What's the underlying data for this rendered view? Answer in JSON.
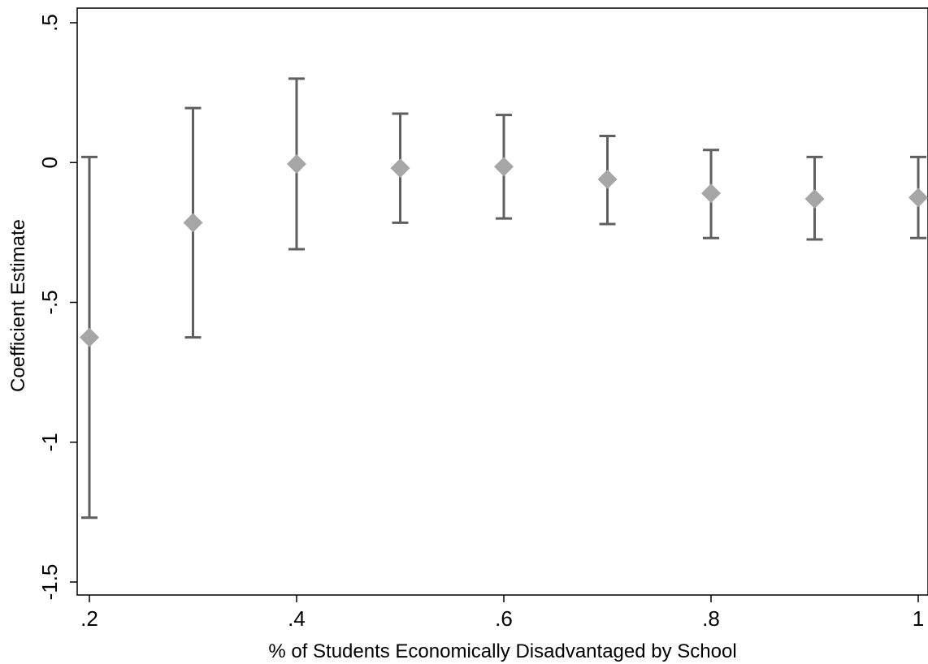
{
  "chart_data": {
    "type": "scatter",
    "title": "",
    "xlabel": "% of Students Economically Disadvantaged by School",
    "ylabel": "Coefficient Estimate",
    "xlim": [
      0.2,
      1.0
    ],
    "ylim": [
      -1.5,
      0.5
    ],
    "x_ticks": [
      {
        "value": 0.2,
        "label": ".2"
      },
      {
        "value": 0.4,
        "label": ".4"
      },
      {
        "value": 0.6,
        "label": ".6"
      },
      {
        "value": 0.8,
        "label": ".8"
      },
      {
        "value": 1.0,
        "label": "1"
      }
    ],
    "y_ticks": [
      {
        "value": 0.5,
        "label": ".5"
      },
      {
        "value": 0.0,
        "label": "0"
      },
      {
        "value": -0.5,
        "label": "-.5"
      },
      {
        "value": -1.0,
        "label": "-1"
      },
      {
        "value": -1.5,
        "label": "-1.5"
      }
    ],
    "grid": false,
    "marker": "diamond",
    "colors": {
      "marker": "#a6a6a6",
      "errorbar": "#5f5f5f",
      "axis": "#000000"
    },
    "points": [
      {
        "x": 0.2,
        "y": -0.625,
        "lo": -1.27,
        "hi": 0.02
      },
      {
        "x": 0.3,
        "y": -0.215,
        "lo": -0.625,
        "hi": 0.195
      },
      {
        "x": 0.4,
        "y": -0.005,
        "lo": -0.31,
        "hi": 0.3
      },
      {
        "x": 0.5,
        "y": -0.02,
        "lo": -0.215,
        "hi": 0.175
      },
      {
        "x": 0.6,
        "y": -0.015,
        "lo": -0.2,
        "hi": 0.17
      },
      {
        "x": 0.7,
        "y": -0.06,
        "lo": -0.22,
        "hi": 0.095
      },
      {
        "x": 0.8,
        "y": -0.11,
        "lo": -0.27,
        "hi": 0.045
      },
      {
        "x": 0.9,
        "y": -0.13,
        "lo": -0.275,
        "hi": 0.02
      },
      {
        "x": 1.0,
        "y": -0.125,
        "lo": -0.27,
        "hi": 0.02
      }
    ]
  }
}
